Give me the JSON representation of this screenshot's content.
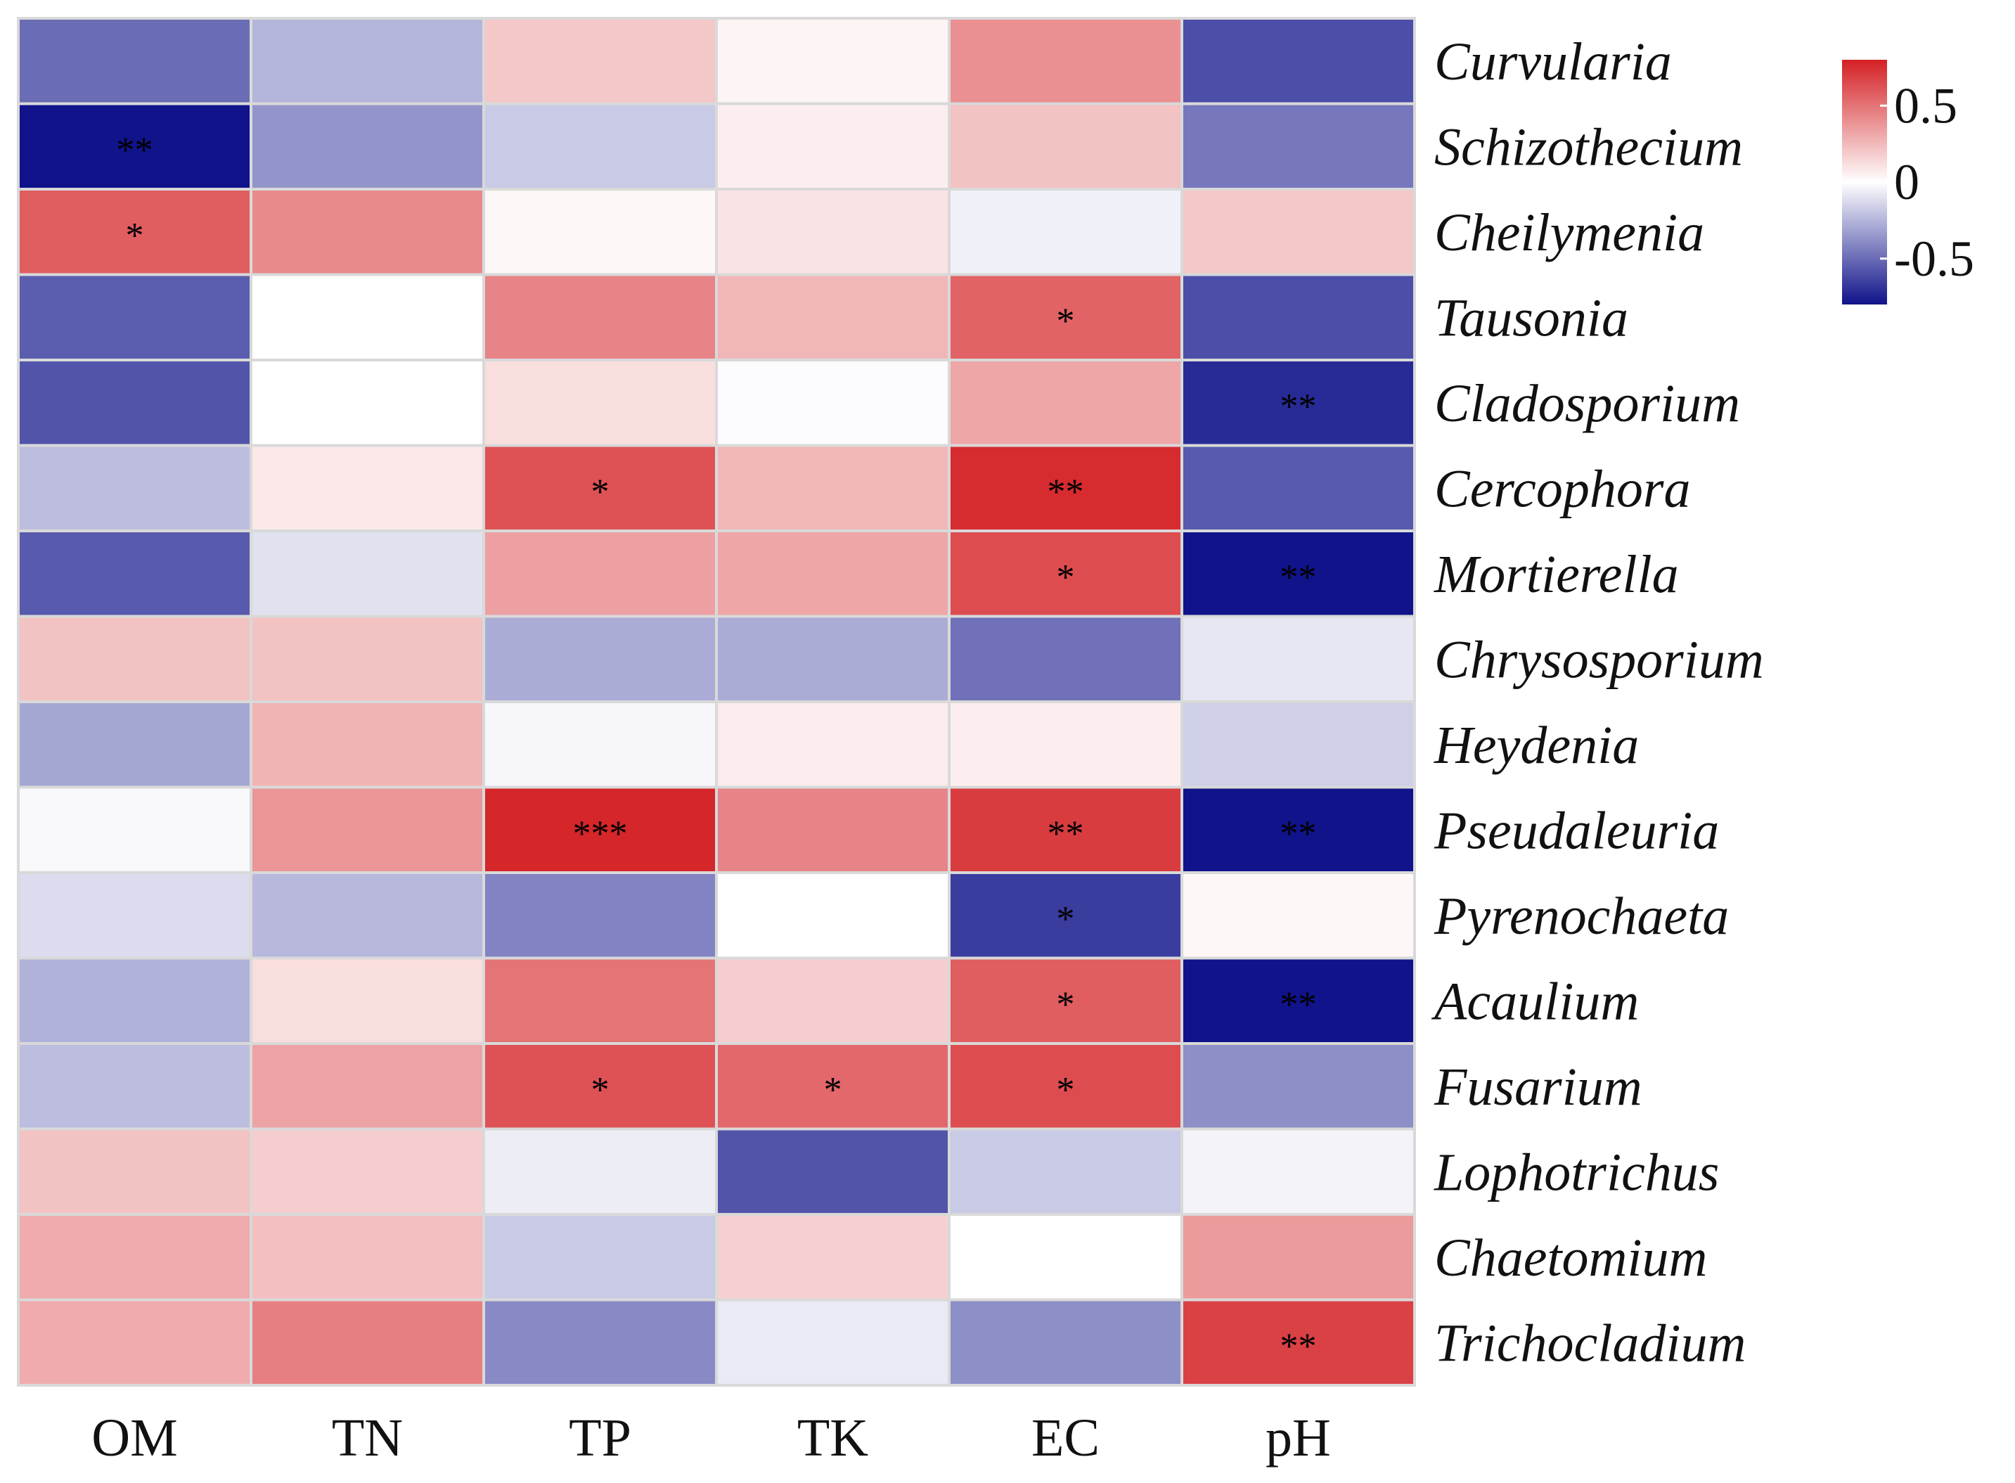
{
  "chart_data": {
    "type": "heatmap",
    "title": "",
    "xlabel": "",
    "ylabel": "",
    "columns": [
      "OM",
      "TN",
      "TP",
      "TK",
      "EC",
      "pH"
    ],
    "rows": [
      "Curvularia",
      "Schizothecium",
      "Cheilymenia",
      "Tausonia",
      "Cladosporium",
      "Cercophora",
      "Mortierella",
      "Chrysosporium",
      "Heydenia",
      "Pseudaleuria",
      "Pyrenochaeta",
      "Acaulium",
      "Fusarium",
      "Lophotrichus",
      "Chaetomium",
      "Trichocladium"
    ],
    "values": [
      [
        -0.5,
        -0.25,
        0.2,
        0.04,
        0.4,
        -0.6
      ],
      [
        -0.8,
        -0.36,
        -0.18,
        0.06,
        0.22,
        -0.46
      ],
      [
        0.58,
        0.42,
        0.03,
        0.1,
        -0.05,
        0.2
      ],
      [
        -0.55,
        0.0,
        0.44,
        0.26,
        0.56,
        -0.6
      ],
      [
        -0.58,
        0.0,
        0.12,
        -0.01,
        0.32,
        -0.72
      ],
      [
        -0.22,
        0.08,
        0.62,
        0.26,
        0.76,
        -0.56
      ],
      [
        -0.56,
        -0.1,
        0.34,
        0.32,
        0.64,
        -0.8
      ],
      [
        0.22,
        0.22,
        -0.28,
        -0.28,
        -0.48,
        -0.08
      ],
      [
        -0.3,
        0.27,
        -0.03,
        0.07,
        0.06,
        -0.16
      ],
      [
        -0.02,
        0.38,
        0.78,
        0.44,
        0.7,
        -0.82
      ],
      [
        -0.12,
        -0.24,
        -0.42,
        0.0,
        -0.66,
        0.03
      ],
      [
        -0.26,
        0.12,
        0.5,
        0.18,
        0.58,
        -0.8
      ],
      [
        -0.22,
        0.33,
        0.62,
        0.54,
        0.64,
        -0.38
      ],
      [
        0.22,
        0.18,
        -0.06,
        -0.58,
        -0.18,
        -0.04
      ],
      [
        0.3,
        0.23,
        -0.18,
        0.17,
        0.0,
        0.36
      ],
      [
        0.3,
        0.46,
        -0.4,
        -0.07,
        -0.38,
        0.68
      ]
    ],
    "significance": [
      [
        "",
        "",
        "",
        "",
        "",
        ""
      ],
      [
        "**",
        "",
        "",
        "",
        "",
        ""
      ],
      [
        "*",
        "",
        "",
        "",
        "",
        ""
      ],
      [
        "",
        "",
        "",
        "",
        "*",
        ""
      ],
      [
        "",
        "",
        "",
        "",
        "",
        "**"
      ],
      [
        "",
        "",
        "*",
        "",
        "**",
        ""
      ],
      [
        "",
        "",
        "",
        "",
        "*",
        "**"
      ],
      [
        "",
        "",
        "",
        "",
        "",
        ""
      ],
      [
        "",
        "",
        "",
        "",
        "",
        ""
      ],
      [
        "",
        "",
        "***",
        "",
        "**",
        "**"
      ],
      [
        "",
        "",
        "",
        "",
        "*",
        ""
      ],
      [
        "",
        "",
        "",
        "",
        "*",
        "**"
      ],
      [
        "",
        "",
        "*",
        "*",
        "*",
        ""
      ],
      [
        "",
        "",
        "",
        "",
        "",
        ""
      ],
      [
        "",
        "",
        "",
        "",
        "",
        ""
      ],
      [
        "",
        "",
        "",
        "",
        "",
        "**"
      ]
    ],
    "color_range": [
      -0.8,
      0.8
    ],
    "colors": {
      "low": "#10138a",
      "mid": "#ffffff",
      "high": "#d42024"
    },
    "legend": {
      "placement": "top-right",
      "ticks": [
        0.5,
        0,
        -0.5
      ],
      "tick_labels": [
        "0.5",
        "0",
        "-0.5"
      ]
    }
  }
}
